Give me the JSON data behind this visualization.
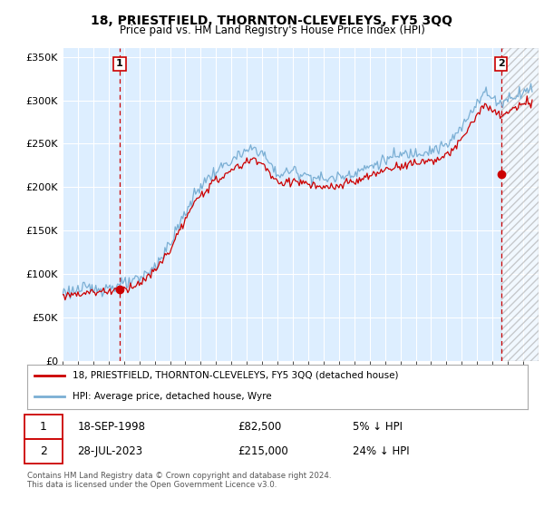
{
  "title": "18, PRIESTFIELD, THORNTON-CLEVELEYS, FY5 3QQ",
  "subtitle": "Price paid vs. HM Land Registry's House Price Index (HPI)",
  "ylabel_ticks": [
    "£0",
    "£50K",
    "£100K",
    "£150K",
    "£200K",
    "£250K",
    "£300K",
    "£350K"
  ],
  "ytick_values": [
    0,
    50000,
    100000,
    150000,
    200000,
    250000,
    300000,
    350000
  ],
  "ylim": [
    0,
    360000
  ],
  "sale1_date_num": 1998.72,
  "sale1_price": 82500,
  "sale2_date_num": 2023.57,
  "sale2_price": 215000,
  "sale1_label": "1",
  "sale2_label": "2",
  "sale1_info": "18-SEP-1998",
  "sale1_price_str": "£82,500",
  "sale1_hpi": "5% ↓ HPI",
  "sale2_info": "28-JUL-2023",
  "sale2_price_str": "£215,000",
  "sale2_hpi": "24% ↓ HPI",
  "legend_line1": "18, PRIESTFIELD, THORNTON-CLEVELEYS, FY5 3QQ (detached house)",
  "legend_line2": "HPI: Average price, detached house, Wyre",
  "footer": "Contains HM Land Registry data © Crown copyright and database right 2024.\nThis data is licensed under the Open Government Licence v3.0.",
  "hpi_color": "#7bafd4",
  "sale_color": "#cc0000",
  "vline_color": "#cc0000",
  "background_color": "#ffffff",
  "plot_bg_color": "#ddeeff",
  "grid_color": "#ffffff",
  "xmin": 1995.0,
  "xmax": 2026.0
}
